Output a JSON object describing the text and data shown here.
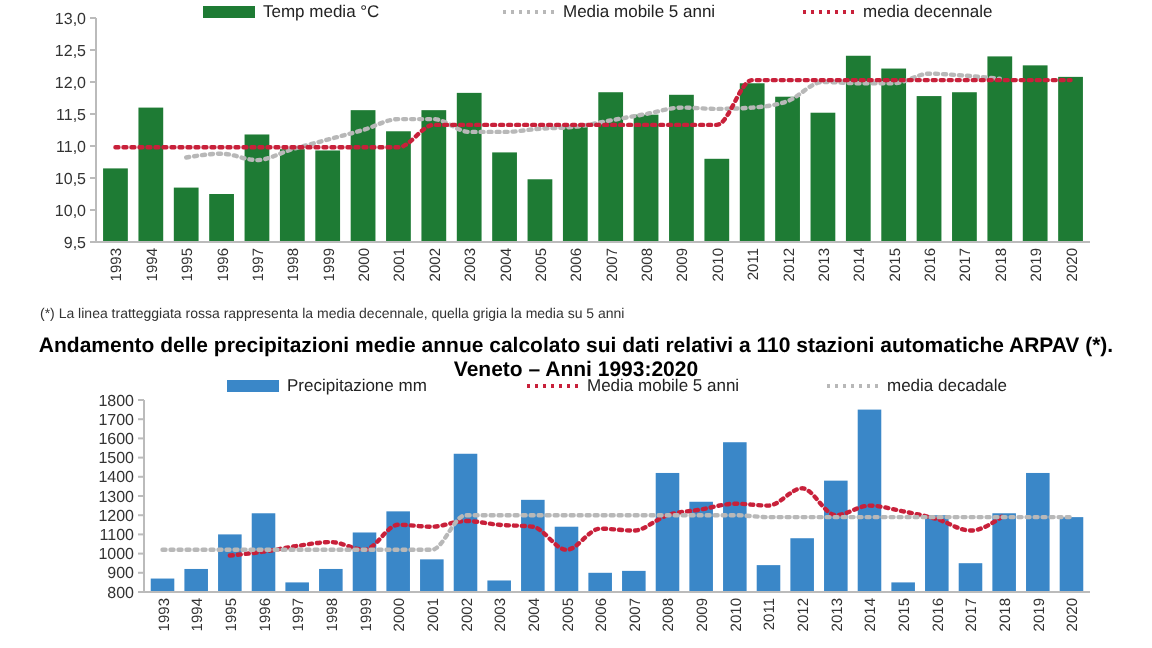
{
  "chart_data": [
    {
      "type": "bar",
      "categories": [
        "1993",
        "1994",
        "1995",
        "1996",
        "1997",
        "1998",
        "1999",
        "2000",
        "2001",
        "2002",
        "2003",
        "2004",
        "2005",
        "2006",
        "2007",
        "2008",
        "2009",
        "2010",
        "2011",
        "2012",
        "2013",
        "2014",
        "2015",
        "2016",
        "2017",
        "2018",
        "2019",
        "2020"
      ],
      "series": [
        {
          "name": "Temp media °C",
          "color": "#1e7b34",
          "values": [
            10.65,
            11.6,
            10.35,
            10.25,
            11.18,
            10.95,
            10.93,
            11.56,
            11.23,
            11.56,
            11.83,
            10.9,
            10.48,
            11.33,
            11.84,
            11.49,
            11.8,
            10.8,
            11.98,
            11.77,
            11.52,
            12.41,
            12.21,
            11.78,
            11.84,
            12.4,
            12.26,
            12.08
          ]
        },
        {
          "name": "Media mobile 5 anni",
          "type": "line",
          "line_style": "dotted",
          "color": "#b8b8b8",
          "values": [
            null,
            null,
            10.82,
            10.88,
            10.78,
            10.95,
            11.1,
            11.25,
            11.42,
            11.42,
            11.22,
            11.22,
            11.27,
            11.3,
            11.4,
            11.5,
            11.6,
            11.58,
            11.6,
            11.7,
            12.0,
            11.98,
            11.98,
            12.13,
            12.1,
            12.05,
            null,
            null
          ]
        },
        {
          "name": "media decennale",
          "type": "line",
          "line_style": "dotted",
          "color": "#c8203a",
          "values": [
            10.98,
            10.98,
            10.98,
            10.98,
            10.98,
            10.98,
            10.98,
            10.98,
            10.98,
            11.33,
            11.33,
            11.33,
            11.33,
            11.33,
            11.33,
            11.33,
            11.33,
            11.33,
            12.03,
            12.03,
            12.03,
            12.03,
            12.03,
            12.03,
            12.03,
            12.03,
            12.03,
            12.03
          ]
        }
      ],
      "ylim": [
        9.5,
        13
      ],
      "yticks": [
        {
          "value": 9.5,
          "label": "9,5"
        },
        {
          "value": 10,
          "label": "10,0"
        },
        {
          "value": 10.5,
          "label": "10,5"
        },
        {
          "value": 11,
          "label": "11,0"
        },
        {
          "value": 11.5,
          "label": "11,5"
        },
        {
          "value": 12,
          "label": "12,0"
        },
        {
          "value": 12.5,
          "label": "12,5"
        },
        {
          "value": 13,
          "label": "13,0"
        }
      ],
      "legend": "top",
      "annotations": [
        "(*) La linea tratteggiata rossa rappresenta la media decennale, quella grigia la media su 5 anni"
      ]
    },
    {
      "type": "bar",
      "title": "Andamento delle precipitazioni medie annue calcolato sui dati relativi a 110 stazioni automatiche ARPAV (*).",
      "subtitle": "Veneto – Anni 1993:2020",
      "categories": [
        "1993",
        "1994",
        "1995",
        "1996",
        "1997",
        "1998",
        "1999",
        "2000",
        "2001",
        "2002",
        "2003",
        "2004",
        "2005",
        "2006",
        "2007",
        "2008",
        "2009",
        "2010",
        "2011",
        "2012",
        "2013",
        "2014",
        "2015",
        "2016",
        "2017",
        "2018",
        "2019",
        "2020"
      ],
      "series": [
        {
          "name": "Precipitazione mm",
          "color": "#3a87c8",
          "values": [
            870,
            920,
            1100,
            1210,
            850,
            920,
            1110,
            1220,
            970,
            1520,
            860,
            1280,
            1140,
            900,
            910,
            1420,
            1270,
            1580,
            940,
            1080,
            1380,
            1750,
            850,
            1200,
            950,
            1210,
            1420,
            1190
          ]
        },
        {
          "name": "Media mobile 5 anni",
          "type": "line",
          "line_style": "dotted",
          "color": "#c8203a",
          "values": [
            null,
            null,
            990,
            1010,
            1040,
            1060,
            1020,
            1150,
            1140,
            1170,
            1150,
            1140,
            1020,
            1130,
            1120,
            1200,
            1230,
            1260,
            1250,
            1340,
            1200,
            1250,
            1220,
            1180,
            1120,
            1200,
            null,
            null
          ]
        },
        {
          "name": "media decadale",
          "type": "line",
          "line_style": "dotted",
          "color": "#b8b8b8",
          "values": [
            1020,
            1020,
            1020,
            1020,
            1020,
            1020,
            1020,
            1020,
            1020,
            1200,
            1200,
            1200,
            1200,
            1200,
            1200,
            1200,
            1200,
            1200,
            1190,
            1190,
            1190,
            1190,
            1190,
            1190,
            1190,
            1190,
            1190,
            1190
          ]
        }
      ],
      "ylim": [
        800,
        1800
      ],
      "yticks": [
        800,
        900,
        1000,
        1100,
        1200,
        1300,
        1400,
        1500,
        1600,
        1700,
        1800
      ],
      "legend": "top"
    }
  ]
}
